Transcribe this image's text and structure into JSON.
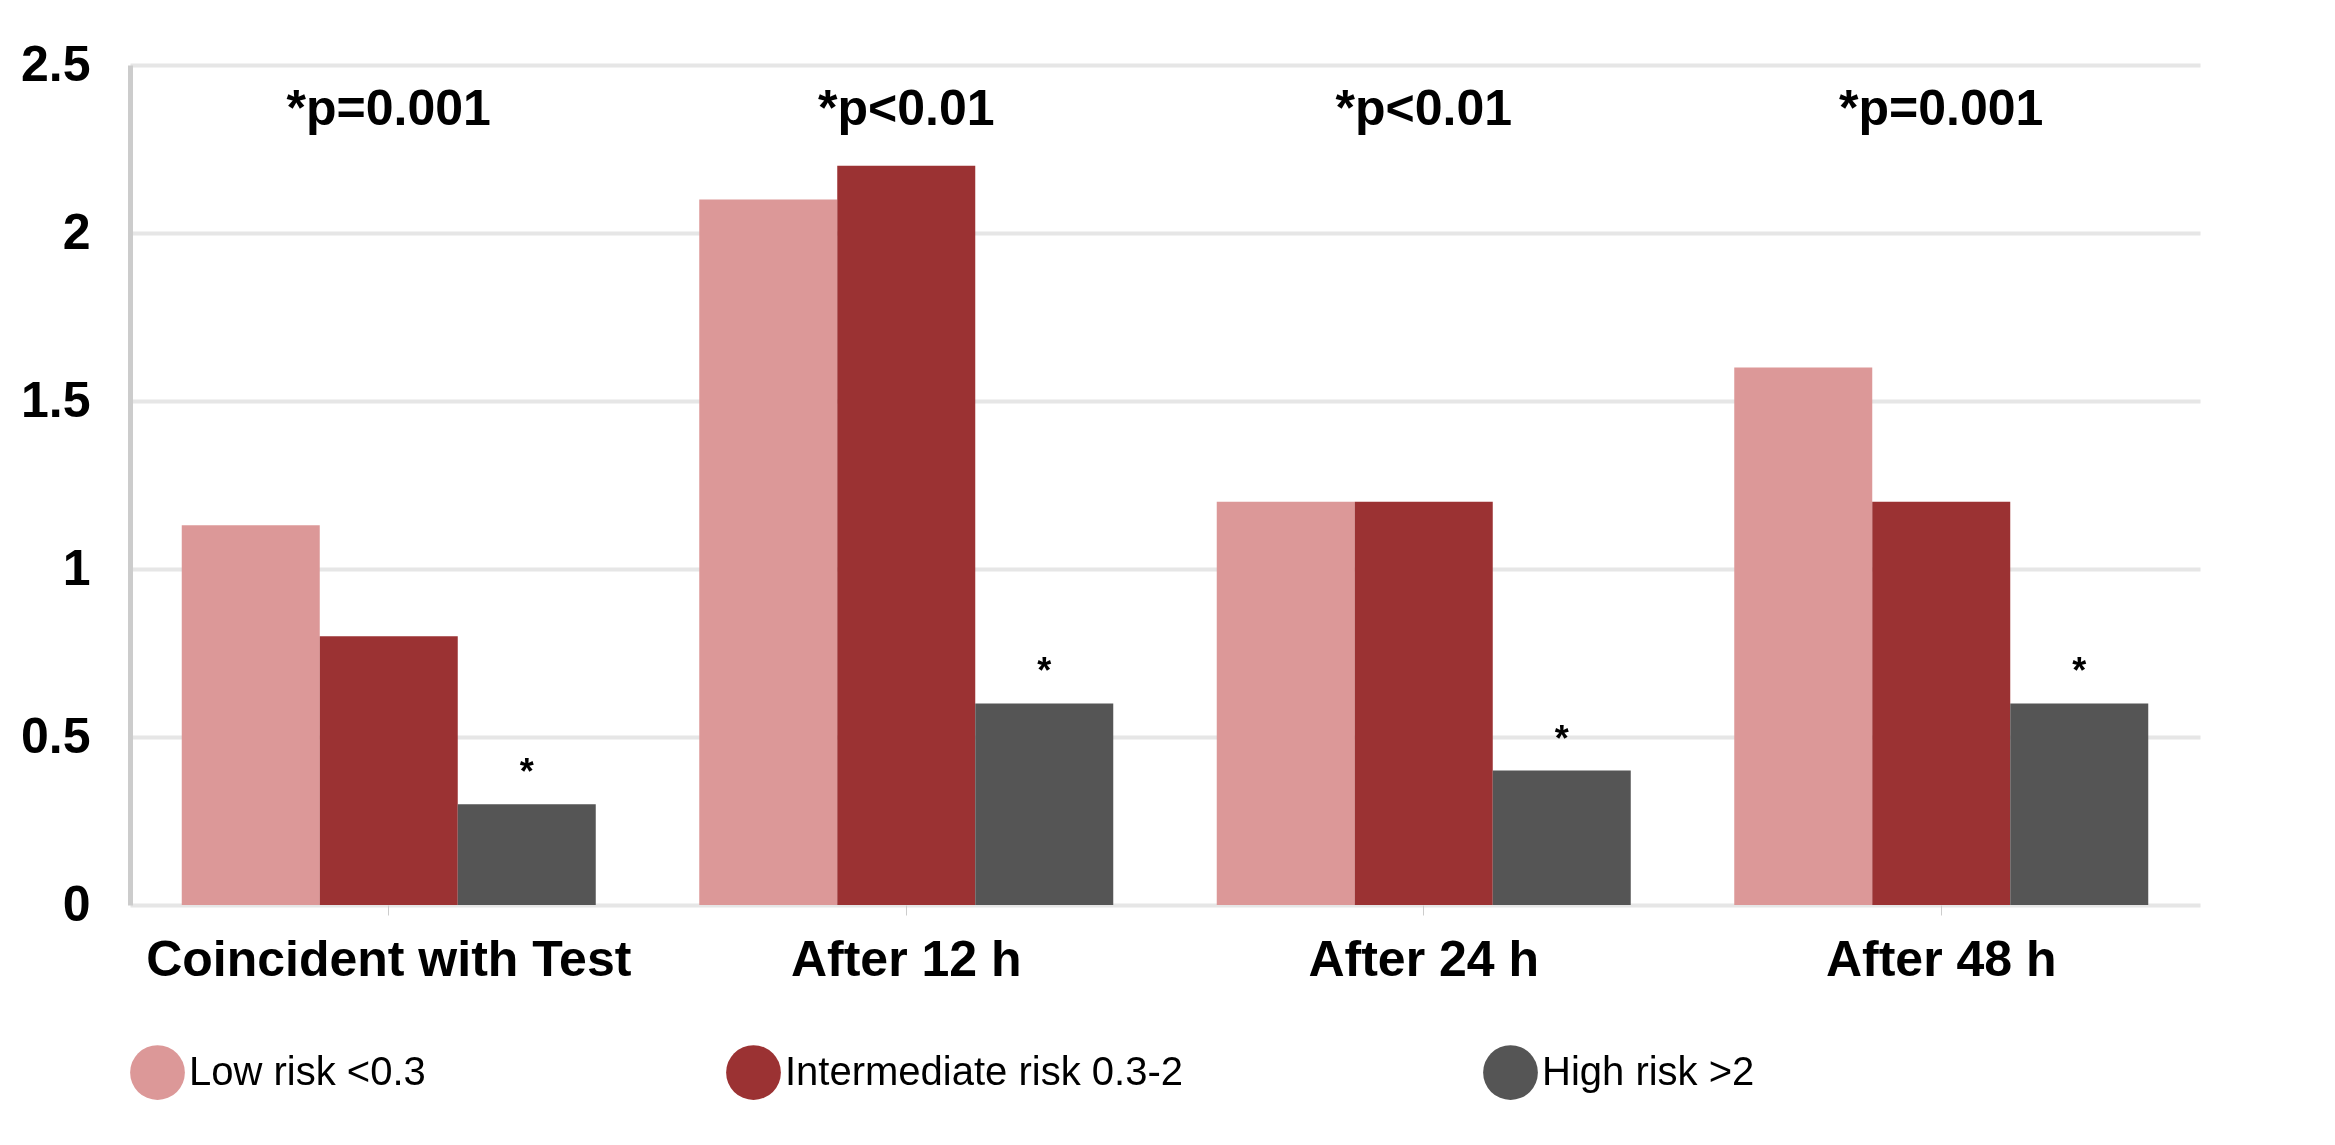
{
  "chart_data": {
    "type": "bar",
    "categories": [
      "Coincident with Test",
      "After 12 h",
      "After 24 h",
      "After 48 h"
    ],
    "series": [
      {
        "name": "Low risk <0.3",
        "color": "#dc9898",
        "values": [
          1.13,
          2.1,
          1.2,
          1.6
        ]
      },
      {
        "name": "Intermediate risk 0.3-2",
        "color": "#9b3233",
        "values": [
          0.8,
          2.2,
          1.2,
          1.2
        ]
      },
      {
        "name": "High risk >2",
        "color": "#555555",
        "values": [
          0.3,
          0.6,
          0.4,
          0.6
        ],
        "value_labels": [
          "*",
          "*",
          "*",
          "*"
        ]
      }
    ],
    "ylim": [
      0,
      2.5
    ],
    "yticks": [
      0,
      0.5,
      1,
      1.5,
      2,
      2.5
    ],
    "grid": "y",
    "legend": "bottom",
    "annotations": [
      "*p=0.001",
      "*p<0.01",
      "*p<0.01",
      "*p=0.001"
    ]
  }
}
